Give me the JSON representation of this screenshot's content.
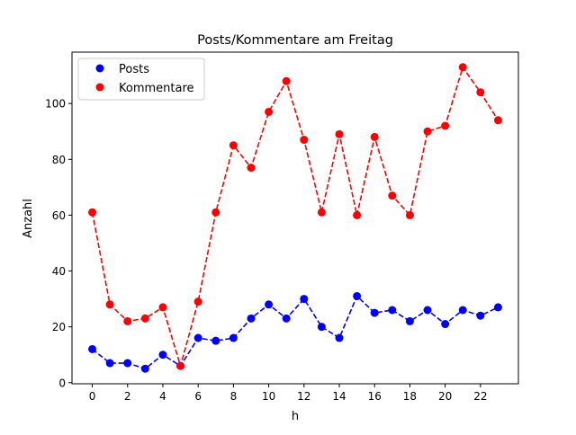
{
  "chart_data": {
    "type": "line",
    "title": "Posts/Kommentare am Freitag",
    "xlabel": "h",
    "ylabel": "Anzahl",
    "x": [
      0,
      1,
      2,
      3,
      4,
      5,
      6,
      7,
      8,
      9,
      10,
      11,
      12,
      13,
      14,
      15,
      16,
      17,
      18,
      19,
      20,
      21,
      22,
      23
    ],
    "xlim": [
      -1.15,
      24.15
    ],
    "ylim": [
      -0.4,
      118.4
    ],
    "xticks": [
      0,
      2,
      4,
      6,
      8,
      10,
      12,
      14,
      16,
      18,
      20,
      22
    ],
    "yticks": [
      0,
      20,
      40,
      60,
      80,
      100
    ],
    "grid": false,
    "legend_position": "top-left",
    "series": [
      {
        "name": "Posts",
        "color": "#0000ff",
        "style": "dashed with circle markers",
        "values": [
          12,
          7,
          7,
          5,
          10,
          6,
          16,
          15,
          16,
          23,
          28,
          23,
          30,
          20,
          16,
          31,
          25,
          26,
          22,
          26,
          21,
          26,
          24,
          27
        ]
      },
      {
        "name": "Kommentare",
        "color": "#ff0000",
        "style": "dashed with circle markers",
        "values": [
          61,
          28,
          22,
          23,
          27,
          6,
          29,
          61,
          85,
          77,
          97,
          108,
          87,
          61,
          89,
          60,
          88,
          67,
          60,
          90,
          92,
          113,
          104,
          94
        ]
      }
    ]
  }
}
